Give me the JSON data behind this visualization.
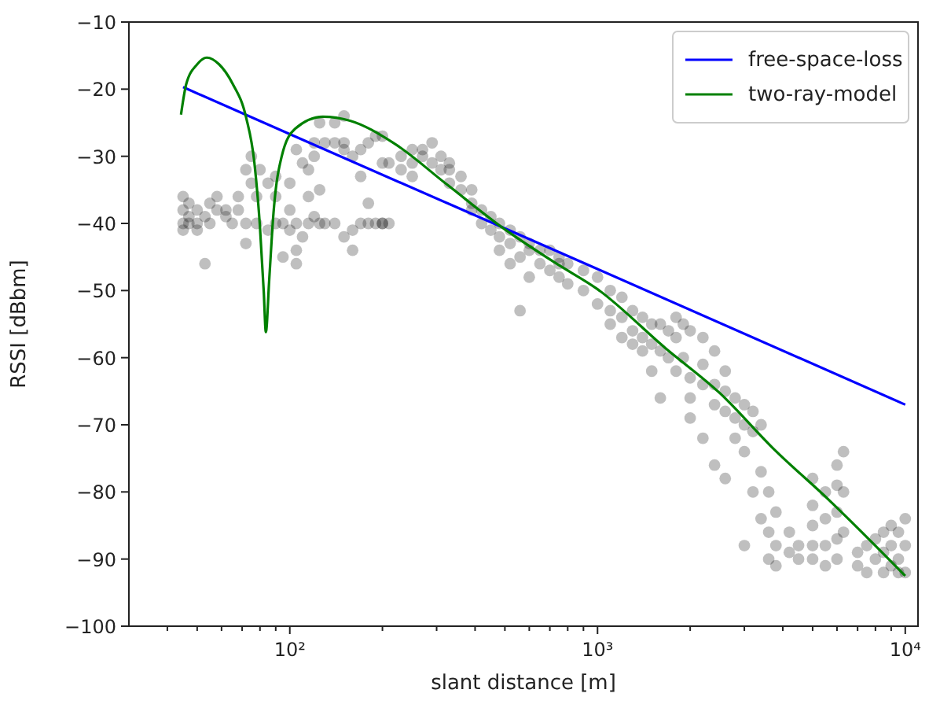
{
  "chart_data": {
    "type": "scatter",
    "xlabel": "slant distance [m]",
    "ylabel": "RSSI [dBbm]",
    "log": "x",
    "grid": false,
    "legend": "top right",
    "xlim": [
      30,
      11000
    ],
    "ylim": [
      -100,
      -10
    ],
    "xticks": [
      {
        "value": 40,
        "label": null
      },
      {
        "value": 50,
        "label": null
      },
      {
        "value": 60,
        "label": null
      },
      {
        "value": 70,
        "label": null
      },
      {
        "value": 80,
        "label": null
      },
      {
        "value": 90,
        "label": null
      },
      {
        "value": 100,
        "label": "10²"
      },
      {
        "value": 200,
        "label": null
      },
      {
        "value": 300,
        "label": null
      },
      {
        "value": 400,
        "label": null
      },
      {
        "value": 500,
        "label": null
      },
      {
        "value": 600,
        "label": null
      },
      {
        "value": 700,
        "label": null
      },
      {
        "value": 800,
        "label": null
      },
      {
        "value": 900,
        "label": null
      },
      {
        "value": 1000,
        "label": "10³"
      },
      {
        "value": 2000,
        "label": null
      },
      {
        "value": 3000,
        "label": null
      },
      {
        "value": 4000,
        "label": null
      },
      {
        "value": 5000,
        "label": null
      },
      {
        "value": 6000,
        "label": null
      },
      {
        "value": 7000,
        "label": null
      },
      {
        "value": 8000,
        "label": null
      },
      {
        "value": 9000,
        "label": null
      },
      {
        "value": 10000,
        "label": "10⁴"
      }
    ],
    "yticks": [
      -100,
      -90,
      -80,
      -70,
      -60,
      -50,
      -40,
      -30,
      -20,
      -10
    ],
    "series": [
      {
        "color": "#000000",
        "marker": "circle",
        "x": [
          45,
          45,
          45,
          45,
          47,
          47,
          47,
          50,
          50,
          50,
          53,
          53,
          55,
          55,
          58,
          58,
          62,
          62,
          65,
          68,
          68,
          72,
          72,
          72,
          75,
          75,
          78,
          78,
          80,
          85,
          85,
          90,
          90,
          90,
          95,
          95,
          100,
          100,
          100,
          105,
          105,
          105,
          105,
          110,
          110,
          115,
          115,
          115,
          120,
          120,
          120,
          125,
          125,
          125,
          130,
          130,
          140,
          140,
          140,
          150,
          150,
          150,
          150,
          160,
          160,
          160,
          170,
          170,
          170,
          180,
          180,
          180,
          190,
          190,
          200,
          200,
          200,
          200,
          210,
          210,
          230,
          230,
          250,
          250,
          250,
          270,
          270,
          290,
          290,
          310,
          310,
          330,
          330,
          330,
          360,
          360,
          390,
          390,
          390,
          420,
          420,
          450,
          450,
          480,
          480,
          480,
          520,
          520,
          520,
          560,
          560,
          560,
          600,
          600,
          600,
          650,
          650,
          700,
          700,
          750,
          750,
          750,
          800,
          800,
          900,
          900,
          1000,
          1000,
          1100,
          1100,
          1100,
          1200,
          1200,
          1200,
          1300,
          1300,
          1300,
          1400,
          1400,
          1400,
          1500,
          1500,
          1500,
          1600,
          1600,
          1600,
          1700,
          1700,
          1800,
          1800,
          1800,
          1900,
          1900,
          2000,
          2000,
          2000,
          2000,
          2200,
          2200,
          2200,
          2200,
          2400,
          2400,
          2400,
          2400,
          2600,
          2600,
          2600,
          2600,
          2800,
          2800,
          2800,
          3000,
          3000,
          3000,
          3000,
          3200,
          3200,
          3200,
          3400,
          3400,
          3400,
          3600,
          3600,
          3600,
          3800,
          3800,
          3800,
          4200,
          4200,
          4500,
          4500,
          5000,
          5000,
          5000,
          5000,
          5000,
          5500,
          5500,
          5500,
          5500,
          6000,
          6000,
          6000,
          6000,
          6000,
          6300,
          6300,
          6300,
          7000,
          7000,
          7500,
          7500,
          8000,
          8000,
          8500,
          8500,
          8500,
          9000,
          9000,
          9000,
          9500,
          9500,
          9500,
          10000,
          10000,
          10000
        ],
        "values": [
          -36,
          -38,
          -40,
          -41,
          -37,
          -39,
          -40,
          -38,
          -40,
          -41,
          -39,
          -46,
          -37,
          -40,
          -36,
          -38,
          -38,
          -39,
          -40,
          -36,
          -38,
          -32,
          -43,
          -40,
          -34,
          -30,
          -40,
          -36,
          -32,
          -34,
          -41,
          -33,
          -36,
          -40,
          -40,
          -45,
          -34,
          -41,
          -38,
          -29,
          -46,
          -44,
          -40,
          -31,
          -42,
          -32,
          -40,
          -36,
          -30,
          -28,
          -39,
          -25,
          -35,
          -40,
          -28,
          -40,
          -25,
          -28,
          -40,
          -24,
          -28,
          -29,
          -42,
          -30,
          -41,
          -44,
          -29,
          -33,
          -40,
          -28,
          -37,
          -40,
          -27,
          -40,
          -27,
          -31,
          -40,
          -40,
          -31,
          -40,
          -30,
          -32,
          -29,
          -31,
          -33,
          -30,
          -29,
          -28,
          -31,
          -30,
          -32,
          -31,
          -32,
          -34,
          -33,
          -35,
          -35,
          -37,
          -38,
          -38,
          -40,
          -39,
          -41,
          -40,
          -42,
          -44,
          -41,
          -43,
          -46,
          -42,
          -45,
          -53,
          -43,
          -44,
          -48,
          -44,
          -46,
          -44,
          -47,
          -45,
          -48,
          -46,
          -46,
          -49,
          -47,
          -50,
          -48,
          -52,
          -50,
          -53,
          -55,
          -51,
          -54,
          -57,
          -53,
          -56,
          -58,
          -54,
          -57,
          -59,
          -55,
          -58,
          -62,
          -55,
          -59,
          -66,
          -56,
          -60,
          -54,
          -57,
          -62,
          -55,
          -60,
          -56,
          -63,
          -66,
          -69,
          -57,
          -61,
          -64,
          -72,
          -59,
          -64,
          -67,
          -76,
          -62,
          -65,
          -68,
          -78,
          -66,
          -69,
          -72,
          -67,
          -70,
          -74,
          -88,
          -68,
          -71,
          -80,
          -70,
          -77,
          -84,
          -80,
          -86,
          -90,
          -83,
          -88,
          -91,
          -86,
          -89,
          -88,
          -90,
          -78,
          -82,
          -85,
          -88,
          -90,
          -80,
          -84,
          -88,
          -91,
          -76,
          -79,
          -83,
          -87,
          -90,
          -74,
          -80,
          -86,
          -89,
          -91,
          -88,
          -92,
          -87,
          -90,
          -86,
          -89,
          -92,
          -85,
          -88,
          -91,
          -86,
          -90,
          -92,
          -84,
          -88,
          -92
        ]
      },
      {
        "type": "line",
        "name": "free-space-loss",
        "color": "#0000ff",
        "x": [
          45,
          100,
          1000,
          10000
        ],
        "values": [
          -19.7,
          -26.7,
          -46.8,
          -67
        ]
      },
      {
        "type": "line",
        "name": "two-ray-model",
        "color": "#008000",
        "x": [
          44.3,
          46.1,
          50,
          53.8,
          58.9,
          65.2,
          72.1,
          76.7,
          79.9,
          82.3,
          83.6,
          85.7,
          88.5,
          94,
          104,
          128,
          157,
          217,
          326,
          490,
          736,
          1000,
          1664,
          2500,
          3757,
          5650,
          10000
        ],
        "values": [
          -23.8,
          -19.2,
          -16.3,
          -15.3,
          -16.3,
          -19.2,
          -24.2,
          -30.9,
          -40.2,
          -50.2,
          -56.2,
          -48.5,
          -38.5,
          -30.1,
          -25.9,
          -24.1,
          -24.7,
          -28,
          -34.3,
          -40.6,
          -46,
          -49.8,
          -58.6,
          -65.3,
          -73.7,
          -81.2,
          -92.5
        ]
      }
    ]
  }
}
